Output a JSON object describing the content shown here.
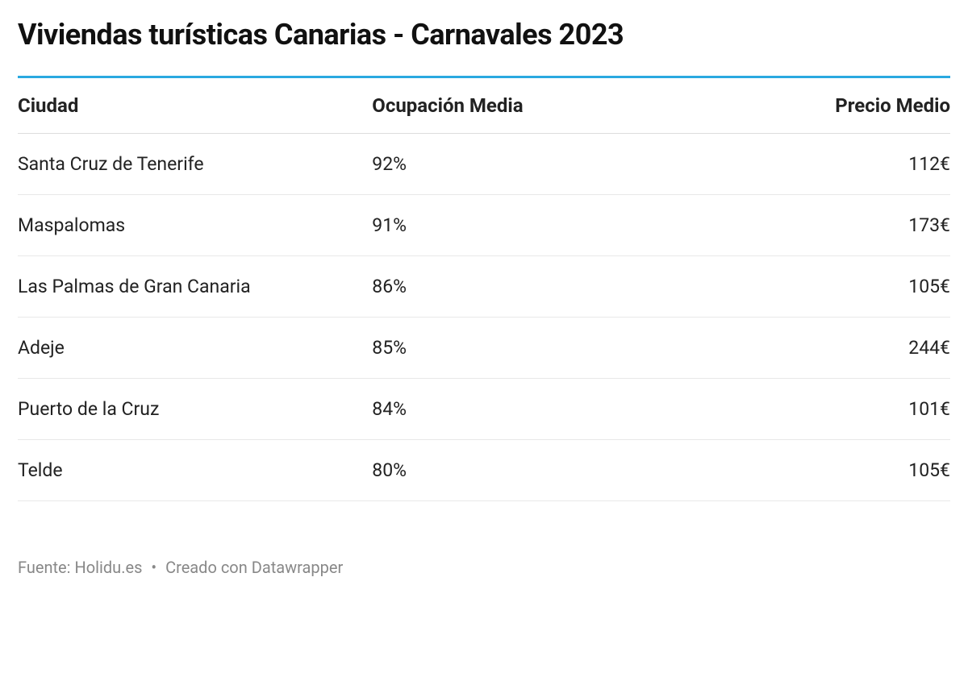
{
  "title": "Viviendas turísticas Canarias - Carnavales 2023",
  "table": {
    "type": "table",
    "columns": [
      {
        "key": "city",
        "label": "Ciudad",
        "align": "left"
      },
      {
        "key": "occupancy",
        "label": "Ocupación Media",
        "align": "left"
      },
      {
        "key": "price",
        "label": "Precio Medio",
        "align": "right"
      }
    ],
    "rows": [
      {
        "city": "Santa Cruz de Tenerife",
        "occupancy": "92%",
        "price": "112€"
      },
      {
        "city": "Maspalomas",
        "occupancy": "91%",
        "price": "173€"
      },
      {
        "city": "Las Palmas de Gran Canaria",
        "occupancy": "86%",
        "price": "105€"
      },
      {
        "city": "Adeje",
        "occupancy": "85%",
        "price": "244€"
      },
      {
        "city": "Puerto de la Cruz",
        "occupancy": "84%",
        "price": "101€"
      },
      {
        "city": "Telde",
        "occupancy": "80%",
        "price": "105€"
      }
    ],
    "styling": {
      "header_border_top_color": "#2aa9e0",
      "header_border_top_width": 3,
      "row_border_color": "#e8e8e8",
      "header_font_size": 24,
      "header_font_weight": 700,
      "cell_font_size": 23,
      "cell_font_weight": 400,
      "text_color": "#222222",
      "background_color": "#ffffff"
    }
  },
  "footer": {
    "source_label": "Fuente:",
    "source_value": "Holidu.es",
    "separator": "•",
    "created_with": "Creado con Datawrapper",
    "text_color": "#888888",
    "font_size": 20
  }
}
